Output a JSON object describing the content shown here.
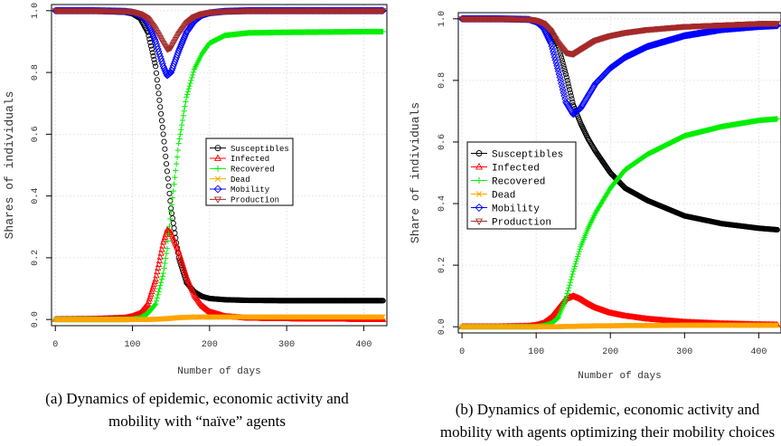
{
  "colors": {
    "Susceptibles": "#000000",
    "Infected": "#ff0000",
    "Recovered": "#00ee00",
    "Dead": "#ffa500",
    "Mobility": "#0000ff",
    "Production": "#a52a2a",
    "grid": "#d8d8d8"
  },
  "chart_data": [
    {
      "type": "scatter",
      "title": "",
      "xlabel": "Number of days",
      "ylabel": "Shares of individuals",
      "xlim": [
        -5,
        430
      ],
      "ylim": [
        -0.02,
        1.02
      ],
      "xticks": [
        "0",
        "100",
        "200",
        "300",
        "400"
      ],
      "yticks": [
        "0.0",
        "0.2",
        "0.4",
        "0.6",
        "0.8",
        "1.0"
      ],
      "grid": true,
      "legend_position": "center-right",
      "x": [
        0,
        50,
        90,
        100,
        110,
        120,
        130,
        140,
        145,
        150,
        160,
        170,
        180,
        190,
        200,
        220,
        250,
        300,
        350,
        400,
        425
      ],
      "series": [
        {
          "name": "Susceptibles",
          "marker": "circle",
          "values": [
            1.0,
            0.999,
            0.995,
            0.99,
            0.975,
            0.93,
            0.82,
            0.6,
            0.48,
            0.36,
            0.2,
            0.12,
            0.09,
            0.075,
            0.068,
            0.064,
            0.062,
            0.061,
            0.061,
            0.061,
            0.061
          ]
        },
        {
          "name": "Infected",
          "marker": "triangle",
          "values": [
            0.0,
            0.001,
            0.005,
            0.01,
            0.02,
            0.05,
            0.13,
            0.25,
            0.29,
            0.28,
            0.22,
            0.14,
            0.08,
            0.045,
            0.025,
            0.01,
            0.004,
            0.002,
            0.001,
            0.0,
            0.0
          ]
        },
        {
          "name": "Recovered",
          "marker": "plus",
          "values": [
            0.0,
            0.0,
            0.0,
            0.001,
            0.005,
            0.02,
            0.05,
            0.15,
            0.23,
            0.35,
            0.57,
            0.72,
            0.81,
            0.86,
            0.895,
            0.92,
            0.928,
            0.93,
            0.931,
            0.932,
            0.932
          ]
        },
        {
          "name": "Dead",
          "marker": "x",
          "values": [
            0.0,
            0.0,
            0.0,
            0.0,
            0.0,
            0.0,
            0.001,
            0.002,
            0.003,
            0.004,
            0.006,
            0.007,
            0.008,
            0.008,
            0.008,
            0.008,
            0.008,
            0.008,
            0.008,
            0.008,
            0.008
          ]
        },
        {
          "name": "Mobility",
          "marker": "diamond",
          "values": [
            1.0,
            1.0,
            0.998,
            0.995,
            0.985,
            0.96,
            0.9,
            0.82,
            0.79,
            0.8,
            0.87,
            0.93,
            0.965,
            0.985,
            0.993,
            0.998,
            1.0,
            1.0,
            1.0,
            1.0,
            1.0
          ]
        },
        {
          "name": "Production",
          "marker": "inv-triangle",
          "values": [
            1.0,
            1.0,
            0.999,
            0.997,
            0.99,
            0.975,
            0.94,
            0.895,
            0.875,
            0.88,
            0.925,
            0.96,
            0.98,
            0.99,
            0.995,
            0.998,
            1.0,
            1.0,
            1.0,
            1.0,
            1.0
          ]
        }
      ]
    },
    {
      "type": "scatter",
      "title": "",
      "xlabel": "Number of days",
      "ylabel": "Share of individuals",
      "xlim": [
        -5,
        430
      ],
      "ylim": [
        -0.02,
        1.02
      ],
      "xticks": [
        "0",
        "100",
        "200",
        "300",
        "400"
      ],
      "yticks": [
        "0.0",
        "0.2",
        "0.4",
        "0.6",
        "0.8",
        "1.0"
      ],
      "grid": true,
      "legend_position": "center-left",
      "x": [
        0,
        50,
        90,
        100,
        110,
        120,
        130,
        140,
        150,
        160,
        170,
        180,
        200,
        220,
        250,
        300,
        350,
        400,
        425
      ],
      "series": [
        {
          "name": "Susceptibles",
          "marker": "circle",
          "values": [
            1.0,
            1.0,
            0.998,
            0.995,
            0.985,
            0.96,
            0.91,
            0.82,
            0.72,
            0.66,
            0.61,
            0.57,
            0.5,
            0.45,
            0.41,
            0.36,
            0.335,
            0.32,
            0.315
          ]
        },
        {
          "name": "Infected",
          "marker": "triangle",
          "values": [
            0.0,
            0.0,
            0.002,
            0.005,
            0.012,
            0.03,
            0.06,
            0.09,
            0.1,
            0.09,
            0.075,
            0.062,
            0.045,
            0.035,
            0.025,
            0.015,
            0.01,
            0.007,
            0.006
          ]
        },
        {
          "name": "Recovered",
          "marker": "plus",
          "values": [
            0.0,
            0.0,
            0.0,
            0.0,
            0.003,
            0.01,
            0.03,
            0.09,
            0.18,
            0.26,
            0.32,
            0.37,
            0.45,
            0.51,
            0.56,
            0.62,
            0.65,
            0.67,
            0.675
          ]
        },
        {
          "name": "Dead",
          "marker": "x",
          "values": [
            0.0,
            0.0,
            0.0,
            0.0,
            0.0,
            0.0,
            0.0,
            0.001,
            0.001,
            0.002,
            0.002,
            0.003,
            0.003,
            0.004,
            0.004,
            0.005,
            0.005,
            0.005,
            0.005
          ]
        },
        {
          "name": "Mobility",
          "marker": "diamond",
          "values": [
            1.0,
            1.0,
            0.998,
            0.99,
            0.97,
            0.92,
            0.83,
            0.73,
            0.69,
            0.71,
            0.75,
            0.79,
            0.84,
            0.875,
            0.91,
            0.945,
            0.965,
            0.975,
            0.978
          ]
        },
        {
          "name": "Production",
          "marker": "inv-triangle",
          "values": [
            1.0,
            1.0,
            0.999,
            0.995,
            0.985,
            0.96,
            0.92,
            0.89,
            0.885,
            0.9,
            0.915,
            0.93,
            0.945,
            0.955,
            0.965,
            0.975,
            0.98,
            0.985,
            0.985
          ]
        }
      ]
    }
  ],
  "captions": [
    {
      "line1": "(a) Dynamics of epidemic, economic activity and",
      "line2": "mobility with “naïve” agents"
    },
    {
      "line1": "(b) Dynamics of epidemic, economic activity and",
      "line2": "mobility with agents optimizing their mobility choices"
    }
  ]
}
